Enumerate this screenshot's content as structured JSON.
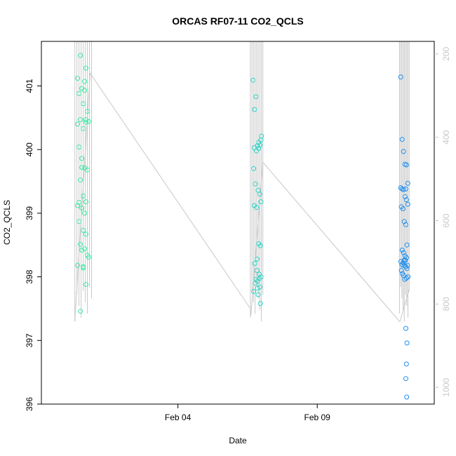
{
  "chart_data": {
    "type": "scatter",
    "title": "ORCAS RF07-11 CO2_QCLS",
    "xlabel": "Date",
    "ylabel": "CO2_QCLS",
    "x_ticks": [
      {
        "label": "Feb 04",
        "value": 4.0
      },
      {
        "label": "Feb 09",
        "value": 9.0
      }
    ],
    "xlim": [
      -0.9,
      13.2
    ],
    "ylim": [
      396.0,
      401.7
    ],
    "y_ticks": [
      "396",
      "397",
      "398",
      "399",
      "400",
      "401"
    ],
    "right_axis": {
      "ticks": [
        "200",
        "400",
        "600",
        "800",
        "1000"
      ],
      "range": [
        1040,
        170
      ],
      "color": "#c8c8c8"
    },
    "point_colors": {
      "green": "#3ee8a6",
      "teal": "#2ed3c6",
      "blue": "#1e8ff0"
    },
    "line_color": "#c8c8c8",
    "series": [
      {
        "color_key": "green",
        "x": [
          0.4,
          0.45,
          0.5,
          0.55,
          0.6,
          0.65,
          0.7,
          0.75,
          0.8,
          0.4,
          0.5,
          0.6,
          0.7,
          0.45,
          0.55,
          0.65,
          0.75,
          0.5,
          0.6,
          0.7,
          0.4,
          0.55,
          0.65,
          0.45,
          0.6,
          0.7,
          0.5,
          0.65,
          0.55,
          0.75,
          0.4,
          0.6,
          0.7,
          0.5,
          0.65,
          0.45,
          0.6,
          0.7,
          0.55,
          0.8
        ],
        "y": [
          401.12,
          400.88,
          401.48,
          400.96,
          400.72,
          401.07,
          401.28,
          400.6,
          400.44,
          400.4,
          400.47,
          400.33,
          400.43,
          400.04,
          399.86,
          399.71,
          399.68,
          399.52,
          399.27,
          399.18,
          399.12,
          399.08,
          399.0,
          398.87,
          398.73,
          398.67,
          398.51,
          398.44,
          398.42,
          398.34,
          398.18,
          398.14,
          397.88,
          397.46,
          400.93,
          399.17,
          398.16,
          400.47,
          399.72,
          398.31
        ]
      },
      {
        "color_key": "teal",
        "x": [
          6.7,
          6.75,
          6.8,
          6.85,
          6.9,
          6.95,
          7.0,
          6.72,
          6.78,
          6.88,
          6.94,
          6.98,
          6.74,
          6.82,
          6.9,
          6.96,
          6.76,
          6.84,
          6.92,
          6.98,
          6.8,
          6.86,
          6.94,
          6.72,
          6.88,
          6.96,
          6.78,
          6.84,
          6.9,
          6.82,
          6.74,
          6.92,
          6.86,
          6.98
        ],
        "y": [
          401.09,
          400.63,
          400.83,
          400.06,
          400.02,
          400.07,
          400.21,
          399.7,
          399.46,
          399.36,
          399.3,
          399.18,
          399.12,
          399.09,
          398.52,
          398.49,
          398.21,
          398.1,
          398.04,
          398.0,
          397.96,
          397.93,
          397.84,
          397.77,
          397.72,
          397.58,
          397.9,
          398.28,
          400.11,
          399.98,
          400.03,
          397.97,
          397.82,
          400.15
        ]
      },
      {
        "color_key": "blue",
        "x": [
          12.0,
          12.05,
          12.1,
          12.15,
          12.2,
          12.25,
          12.0,
          12.05,
          12.1,
          12.15,
          12.2,
          12.25,
          12.02,
          12.08,
          12.12,
          12.18,
          12.22,
          12.05,
          12.1,
          12.15,
          12.2,
          12.0,
          12.08,
          12.12,
          12.18,
          12.22,
          12.02,
          12.06,
          12.1,
          12.14,
          12.18,
          12.24,
          12.04,
          12.12,
          12.2,
          12.16,
          12.26,
          12.18,
          12.22,
          12.2,
          12.18,
          12.21
        ],
        "y": [
          401.14,
          400.16,
          399.97,
          399.77,
          399.76,
          399.47,
          399.4,
          399.38,
          399.37,
          399.26,
          399.21,
          399.14,
          399.1,
          399.07,
          398.87,
          398.82,
          398.5,
          398.42,
          398.38,
          398.33,
          398.3,
          398.24,
          398.22,
          398.18,
          398.16,
          398.13,
          398.1,
          398.05,
          398.02,
          397.96,
          399.38,
          398.18,
          398.19,
          398.26,
          397.98,
          398.26,
          398.0,
          397.19,
          396.96,
          396.63,
          396.4,
          396.11
        ]
      }
    ],
    "line_series": {
      "x": [
        0.3,
        0.85,
        6.6,
        6.62,
        7.05,
        11.95,
        11.97,
        12.3
      ],
      "y": [
        397.3,
        401.2,
        397.5,
        397.4,
        399.8,
        397.3,
        397.3,
        397.8
      ]
    }
  }
}
